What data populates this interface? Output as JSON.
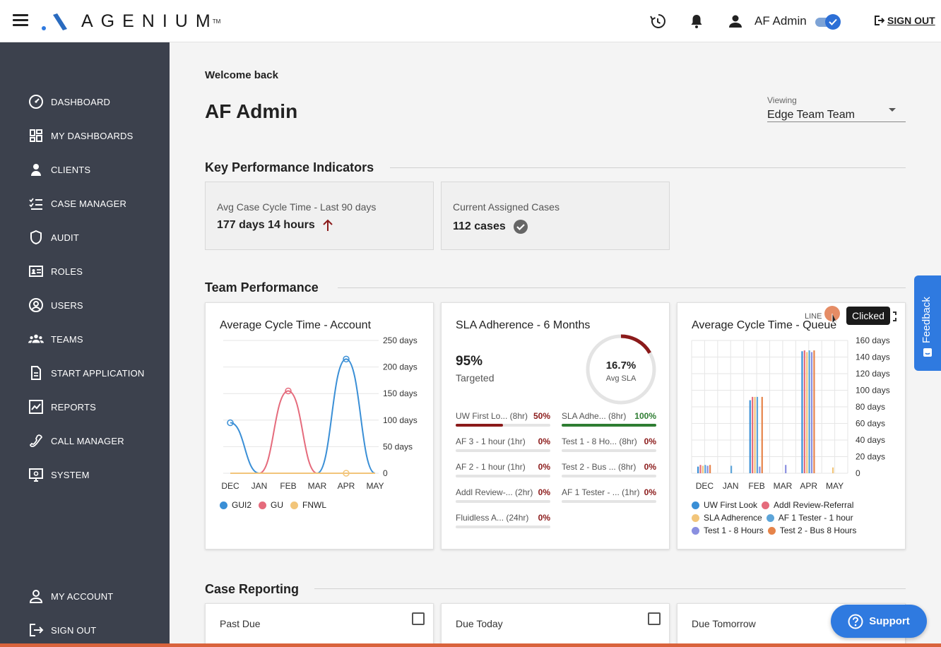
{
  "header": {
    "logo_text": "AGENIUM",
    "logo_tm": "TM",
    "user_name": "AF Admin",
    "sign_out": "SIGN OUT",
    "toggle_on": true,
    "icons": [
      "menu-icon",
      "history-icon",
      "bell-icon",
      "user-icon",
      "sign-out-icon"
    ]
  },
  "sidebar": {
    "items": [
      {
        "label": "DASHBOARD",
        "icon": "dashboard-icon"
      },
      {
        "label": "MY DASHBOARDS",
        "icon": "grid-icon"
      },
      {
        "label": "CLIENTS",
        "icon": "person-icon"
      },
      {
        "label": "CASE MANAGER",
        "icon": "checklist-icon"
      },
      {
        "label": "AUDIT",
        "icon": "shield-icon"
      },
      {
        "label": "ROLES",
        "icon": "id-card-icon"
      },
      {
        "label": "USERS",
        "icon": "user-circle-icon"
      },
      {
        "label": "TEAMS",
        "icon": "team-icon"
      },
      {
        "label": "START APPLICATION",
        "icon": "document-icon"
      },
      {
        "label": "REPORTS",
        "icon": "chart-icon"
      },
      {
        "label": "CALL MANAGER",
        "icon": "phone-icon"
      },
      {
        "label": "SYSTEM",
        "icon": "monitor-icon"
      }
    ],
    "bottom_items": [
      {
        "label": "MY ACCOUNT",
        "icon": "account-icon"
      },
      {
        "label": "SIGN OUT",
        "icon": "sign-out-icon"
      }
    ]
  },
  "main": {
    "welcome": "Welcome back",
    "title": "AF Admin",
    "viewing_label": "Viewing",
    "viewing_value": "Edge Team Team",
    "kpi_section": "Key Performance Indicators",
    "kpis": [
      {
        "label": "Avg Case Cycle Time - Last 90 days",
        "value": "177 days 14 hours"
      },
      {
        "label": "Current Assigned Cases",
        "value": "112 cases"
      }
    ],
    "team_section": "Team Performance",
    "case_section": "Case Reporting",
    "case_cards": [
      "Past Due",
      "Due Today",
      "Due Tomorrow"
    ]
  },
  "sla": {
    "title": "SLA Adherence - 6 Months",
    "targeted_value": "95%",
    "targeted_label": "Targeted",
    "avg_value": "16.7%",
    "avg_label": "Avg SLA",
    "avg_fraction": 0.167,
    "rows": [
      {
        "name": "UW First Lo...",
        "hours": "(8hr)",
        "pct": "50%",
        "fill": 0.5,
        "color": "#8b1a1a"
      },
      {
        "name": "SLA Adhe...",
        "hours": "(8hr)",
        "pct": "100%",
        "fill": 1.0,
        "color": "#2e7d32"
      },
      {
        "name": "AF 3 - 1 hour",
        "hours": "(1hr)",
        "pct": "0%",
        "fill": 0,
        "color": "#8b1a1a"
      },
      {
        "name": "Test 1 - 8 Ho...",
        "hours": "(8hr)",
        "pct": "0%",
        "fill": 0,
        "color": "#8b1a1a"
      },
      {
        "name": "AF 2 - 1 hour",
        "hours": "(1hr)",
        "pct": "0%",
        "fill": 0,
        "color": "#8b1a1a"
      },
      {
        "name": "Test 2 - Bus ...",
        "hours": "(8hr)",
        "pct": "0%",
        "fill": 0,
        "color": "#8b1a1a"
      },
      {
        "name": "Addl Review-...",
        "hours": "(2hr)",
        "pct": "0%",
        "fill": 0,
        "color": "#8b1a1a"
      },
      {
        "name": "AF 1 Tester - ...",
        "hours": "(1hr)",
        "pct": "0%",
        "fill": 0,
        "color": "#8b1a1a"
      },
      {
        "name": "Fluidless A...",
        "hours": "(24hr)",
        "pct": "0%",
        "fill": 0,
        "color": "#8b1a1a"
      }
    ]
  },
  "overlay": {
    "tooltip": "Clicked",
    "menu_label": "LINE",
    "feedback": "Feedback",
    "support": "Support"
  },
  "chart_data": [
    {
      "type": "line",
      "title": "Average Cycle Time - Account",
      "categories": [
        "DEC",
        "JAN",
        "FEB",
        "MAR",
        "APR",
        "MAY"
      ],
      "ylim": [
        0,
        250
      ],
      "yticks": [
        "250 days",
        "200 days",
        "150 days",
        "100 days",
        "50 days",
        "0"
      ],
      "series": [
        {
          "name": "GUI2",
          "color": "#3a8fd6",
          "values": [
            95,
            0,
            0,
            0,
            215,
            0
          ]
        },
        {
          "name": "GU",
          "color": "#e56b7c",
          "values": [
            0,
            0,
            155,
            0,
            0,
            0
          ]
        },
        {
          "name": "FNWL",
          "color": "#f2c57a",
          "values": [
            0,
            0,
            0,
            0,
            0,
            0
          ]
        }
      ]
    },
    {
      "type": "pie",
      "title": "SLA Adherence - 6 Months",
      "values": [
        16.7,
        83.3
      ],
      "categories": [
        "Avg SLA",
        ""
      ]
    },
    {
      "type": "bar",
      "title": "Average Cycle Time - Queue",
      "categories": [
        "DEC",
        "JAN",
        "FEB",
        "MAR",
        "APR",
        "MAY"
      ],
      "ylim": [
        0,
        160
      ],
      "yticks": [
        "160 days",
        "140 days",
        "120 days",
        "100 days",
        "80 days",
        "60 days",
        "40 days",
        "20 days",
        "0"
      ],
      "series": [
        {
          "name": "UW First Look",
          "color": "#3a8fd6",
          "values": [
            8,
            0,
            88,
            0,
            147,
            0
          ]
        },
        {
          "name": "Addl Review-Referral",
          "color": "#e56b7c",
          "values": [
            10,
            0,
            92,
            0,
            148,
            0
          ]
        },
        {
          "name": "SLA Adherence",
          "color": "#f2c57a",
          "values": [
            9,
            0,
            92,
            0,
            146,
            7
          ]
        },
        {
          "name": "AF 1 Tester - 1 hour",
          "color": "#5da5d9",
          "values": [
            10,
            9,
            92,
            0,
            148,
            0
          ]
        },
        {
          "name": "Test 1 - 8 Hours",
          "color": "#8a8fe0",
          "values": [
            9,
            0,
            8,
            10,
            146,
            0
          ]
        },
        {
          "name": "Test 2 - Bus 8 Hours",
          "color": "#e6844a",
          "values": [
            10,
            0,
            92,
            0,
            148,
            0
          ]
        }
      ]
    }
  ]
}
